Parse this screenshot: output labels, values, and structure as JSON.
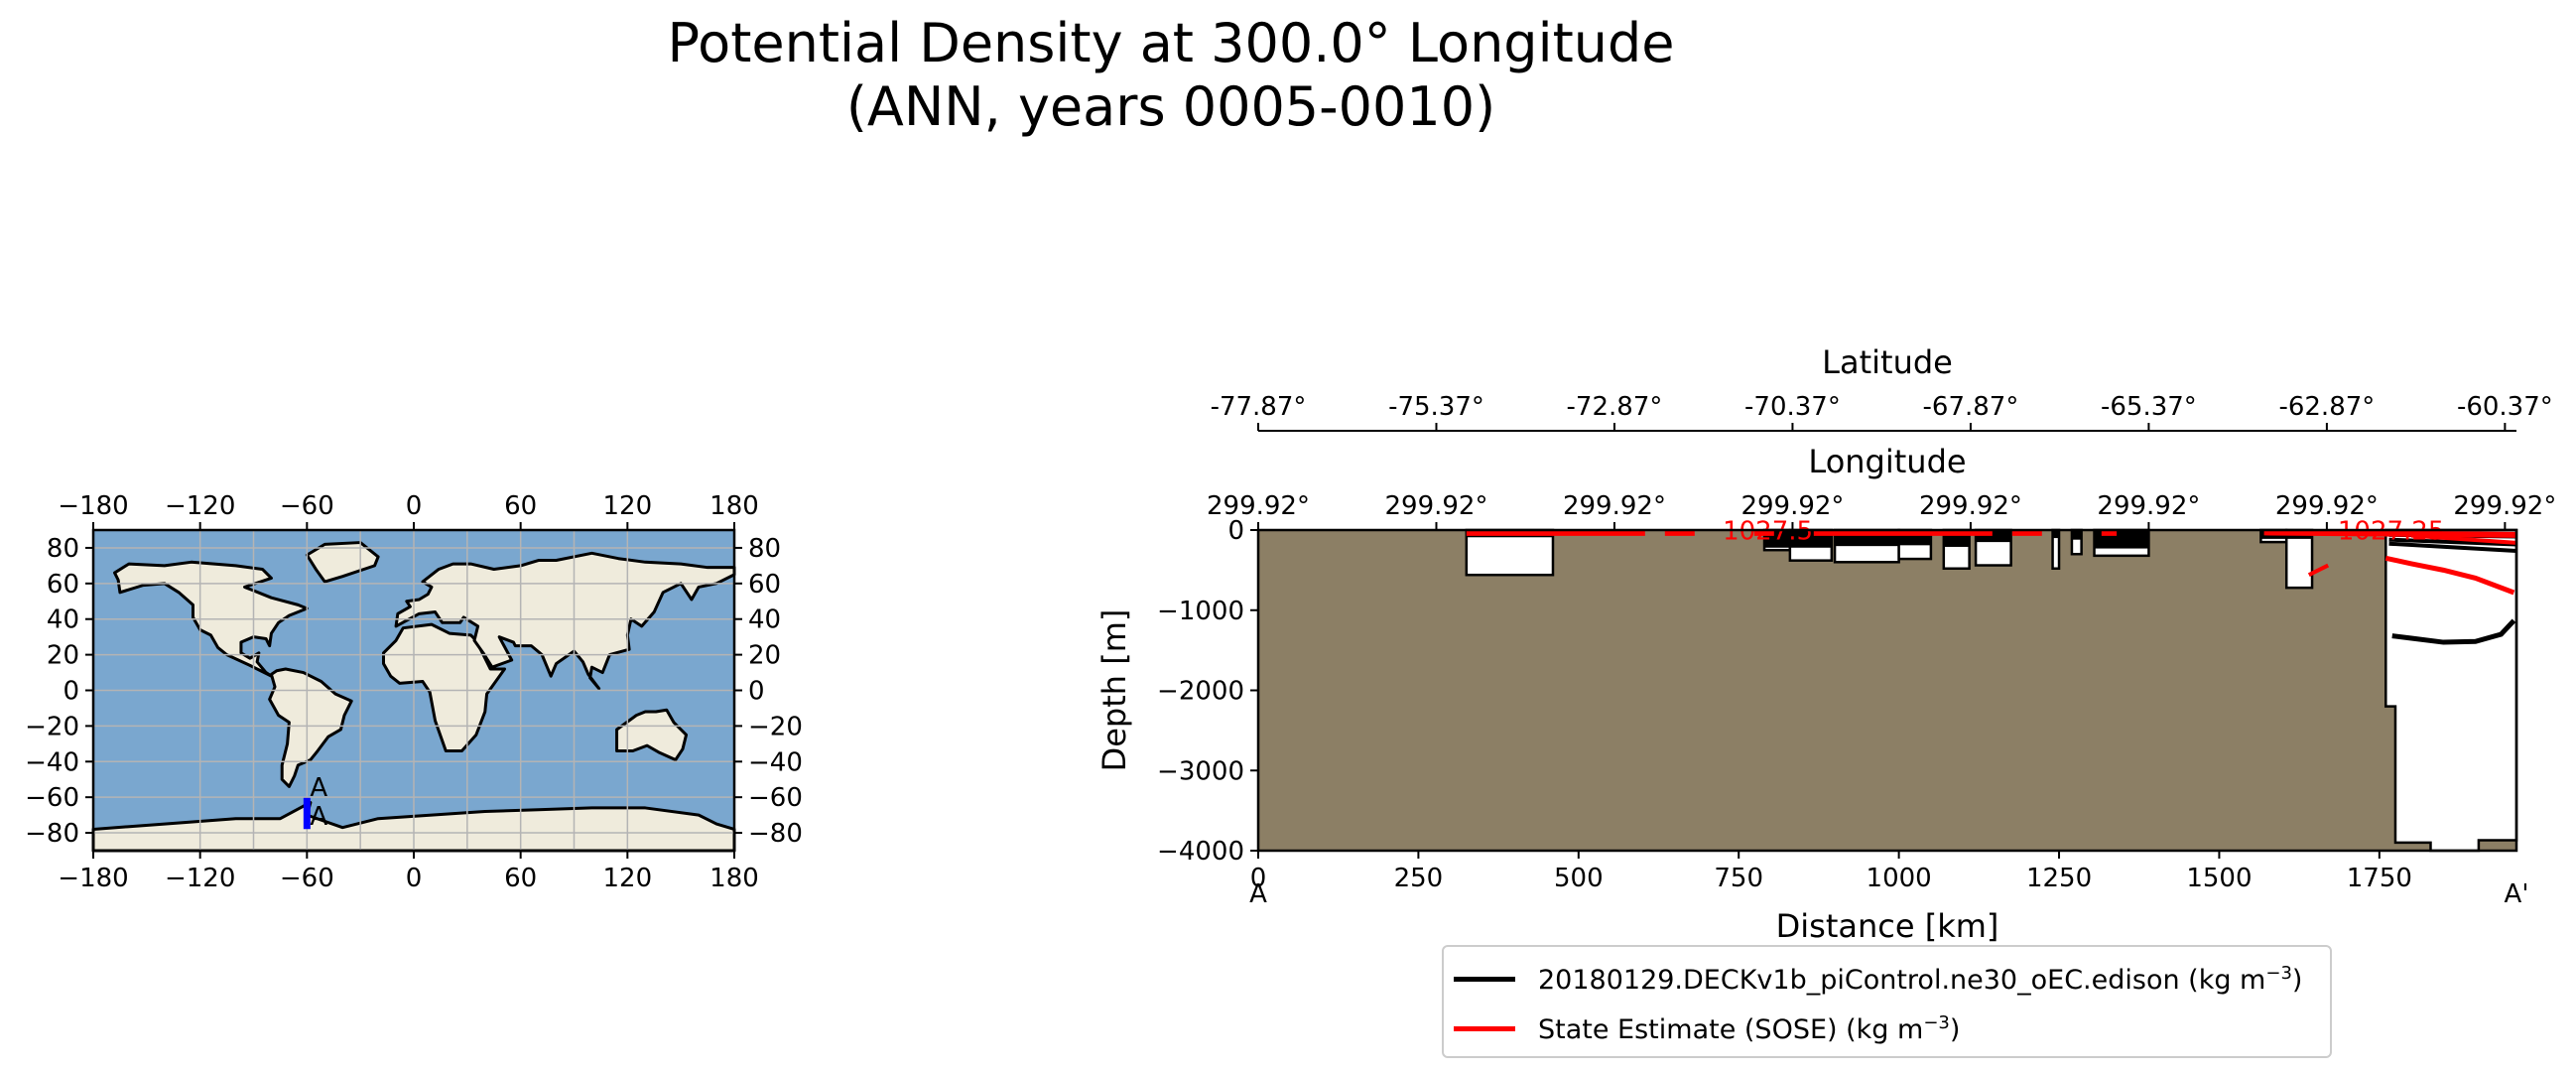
{
  "chart_data": [
    {
      "type": "map",
      "title": "",
      "top_ticks": [
        "−180",
        "−120",
        "−60",
        "0",
        "60",
        "120",
        "180"
      ],
      "bottom_ticks": [
        "−180",
        "−120",
        "−60",
        "0",
        "60",
        "120",
        "180"
      ],
      "left_ticks": [
        "80",
        "60",
        "40",
        "20",
        "0",
        "−20",
        "−40",
        "−60",
        "−80"
      ],
      "right_ticks": [
        "80",
        "60",
        "40",
        "20",
        "0",
        "−20",
        "−40",
        "−60",
        "−80"
      ],
      "xlim": [
        -180,
        180
      ],
      "ylim": [
        -90,
        90
      ],
      "transect": {
        "lon": -60,
        "lat_start": -77.87,
        "lat_end": -60.37,
        "start_label": "A",
        "end_label": "A"
      },
      "colors": {
        "ocean": "#7aa7cf",
        "land": "#efebdc",
        "coast": "#000000",
        "transect": "#0000ff"
      }
    },
    {
      "type": "line",
      "title": "Potential Density at 300.0° Longitude\n(ANN, years 0005-0010)",
      "title_lines": [
        "Potential Density at 300.0° Longitude",
        "(ANN, years 0005-0010)"
      ],
      "xlabel": "Distance [km]",
      "ylabel": "Depth [m]",
      "xlim": [
        0,
        1964
      ],
      "ylim": [
        -4000,
        0
      ],
      "x_ticks": [
        "0",
        "250",
        "500",
        "750",
        "1000",
        "1250",
        "1500",
        "1750"
      ],
      "x_tick_values": [
        0,
        250,
        500,
        750,
        1000,
        1250,
        1500,
        1750
      ],
      "y_ticks": [
        "0",
        "−1000",
        "−2000",
        "−3000",
        "−4000"
      ],
      "y_tick_values": [
        0,
        -1000,
        -2000,
        -3000,
        -4000
      ],
      "endpoint_labels": [
        "A",
        "A'"
      ],
      "latitude_axis": {
        "label": "Latitude",
        "ticks": [
          "-77.87°",
          "-75.37°",
          "-72.87°",
          "-70.37°",
          "-67.87°",
          "-65.37°",
          "-62.87°",
          "-60.37°"
        ],
        "tick_positions_km": [
          0,
          278,
          556,
          834,
          1112,
          1390,
          1668,
          1946
        ]
      },
      "longitude_axis": {
        "label": "Longitude",
        "ticks": [
          "299.92°",
          "299.92°",
          "299.92°",
          "299.92°",
          "299.92°",
          "299.92°",
          "299.92°",
          "299.92°"
        ],
        "tick_positions_km": [
          0,
          278,
          556,
          834,
          1112,
          1390,
          1668,
          1946
        ]
      },
      "bathymetry": {
        "color": "#8c7f65",
        "ocean_gaps": [
          {
            "x": [
              325,
              460
            ],
            "ybot": -560
          },
          {
            "x": [
              790,
              830
            ],
            "ybot": -250
          },
          {
            "x": [
              830,
              895
            ],
            "ybot": -380
          },
          {
            "x": [
              900,
              1000
            ],
            "ybot": -400
          },
          {
            "x": [
              1000,
              1050
            ],
            "ybot": -360
          },
          {
            "x": [
              1070,
              1110
            ],
            "ybot": -480
          },
          {
            "x": [
              1120,
              1175
            ],
            "ybot": -440
          },
          {
            "x": [
              1240,
              1250
            ],
            "ybot": -480
          },
          {
            "x": [
              1270,
              1285
            ],
            "ybot": -300
          },
          {
            "x": [
              1305,
              1390
            ],
            "ybot": -320
          },
          {
            "x": [
              1565,
              1605
            ],
            "ybot": -150
          },
          {
            "x": [
              1605,
              1645
            ],
            "ybot": -720
          }
        ],
        "open_ocean_start_km": 1760
      },
      "series": [
        {
          "name": "20180129.DECKv1b_piControl.ne30_oEC.edison (kg m⁻³)",
          "color": "#000000",
          "x": [
            1770,
            1800,
            1850,
            1900,
            1940,
            1960
          ],
          "y": [
            -1320,
            -1350,
            -1400,
            -1390,
            -1300,
            -1130
          ]
        },
        {
          "name": "State Estimate (SOSE) (kg m⁻³)",
          "color": "#ff0000",
          "x": [
            1760,
            1800,
            1850,
            1900,
            1940,
            1960
          ],
          "y": [
            -350,
            -420,
            -500,
            -600,
            -720,
            -780
          ]
        }
      ],
      "contour_labels": [
        "1027.5",
        "1027.25"
      ],
      "legend": {
        "entries": [
          {
            "text": "20180129.DECKv1b_piControl.ne30_oEC.edison (kg m",
            "sup": "−3",
            "close": ")",
            "color": "#000000"
          },
          {
            "text": "State Estimate (SOSE) (kg m",
            "sup": "−3",
            "close": ")",
            "color": "#ff0000"
          }
        ],
        "placement": "bottom-center"
      }
    }
  ]
}
